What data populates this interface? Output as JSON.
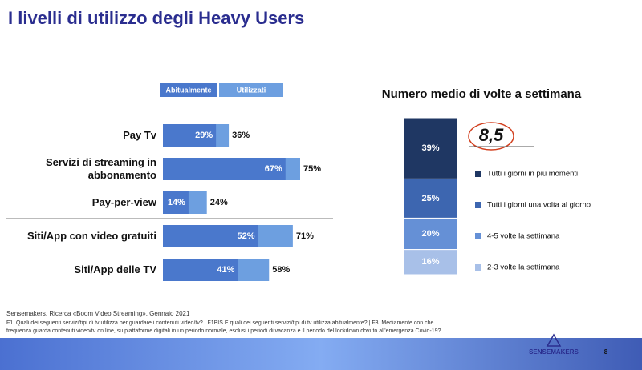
{
  "page": {
    "title": "I livelli di utilizzo degli Heavy Users",
    "source": "Sensemakers, Ricerca «Boom Video Streaming», Gennaio 2021",
    "notes": [
      "F1. Quali dei seguenti servizi/tipi di tv utilizza per guardare i contenuti video/tv? | F1BIS E quali dei seguenti servizi/tipi di tv utilizza abitualmente? | F3. Mediamente con che",
      "frequenza guarda contenuti video/tv on line, su piattaforme digitali in un periodo normale, esclusi i periodi di vacanza e il periodo del lockdown dovuto all'emergenza Covid-19?"
    ],
    "brand": "SENSEMAKERS",
    "page_number": "8"
  },
  "chart_data": [
    {
      "type": "hbar",
      "categories": [
        "Pay Tv",
        "Servizi di streaming in abbonamento",
        "Pay-per-view",
        "Siti/App con video gratuiti",
        "Siti/App delle TV"
      ],
      "series": [
        {
          "name": "Abitualmente",
          "color": "#4a78cc",
          "values": [
            29,
            67,
            14,
            52,
            41
          ],
          "value_labels": [
            "29%",
            "67%",
            "14%",
            "52%",
            "41%"
          ]
        },
        {
          "name": "Utilizzati",
          "color": "#6d9fe0",
          "values": [
            36,
            75,
            24,
            71,
            58
          ],
          "value_labels": [
            "36%",
            "75%",
            "24%",
            "71%",
            "58%"
          ]
        }
      ]
    },
    {
      "type": "stacked",
      "title": "Numero medio di volte a settimana",
      "annotation": "8,5",
      "series": [
        {
          "name": "Tutti i giorni in più momenti",
          "color": "#1f3763",
          "values": [
            39
          ],
          "value_labels": [
            "39%"
          ]
        },
        {
          "name": "Tutti i giorni una volta al giorno",
          "color": "#3d66b0",
          "values": [
            25
          ],
          "value_labels": [
            "25%"
          ]
        },
        {
          "name": "4-5 volte la settimana",
          "color": "#6590d6",
          "values": [
            20
          ],
          "value_labels": [
            "20%"
          ]
        },
        {
          "name": "2-3 volte la settimana",
          "color": "#a8c0e8",
          "values": [
            16
          ],
          "value_labels": [
            "16%"
          ]
        }
      ]
    }
  ]
}
